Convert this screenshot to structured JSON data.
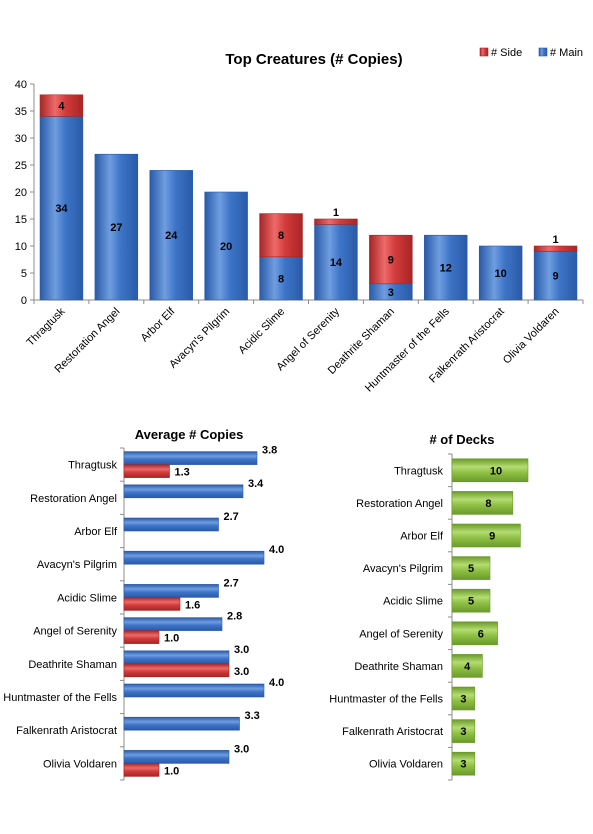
{
  "colors": {
    "main": "#3d74c7",
    "main_light": "#6f9de0",
    "main_dark": "#2a5aa8",
    "side": "#d23b3b",
    "side_light": "#ee6a6a",
    "side_dark": "#a82525",
    "decks": "#8fc044",
    "decks_light": "#b4dc72",
    "decks_dark": "#6a9a2a",
    "axis": "#8c8c8c"
  },
  "chart_data": [
    {
      "type": "bar",
      "stacked": true,
      "title": "Top Creatures (# Copies)",
      "categories": [
        "Thragtusk",
        "Restoration Angel",
        "Arbor Elf",
        "Avacyn's Pilgrim",
        "Acidic Slime",
        "Angel of Serenity",
        "Deathrite Shaman",
        "Huntmaster of the Fells",
        "Falkenrath Aristocrat",
        "Olivia Voldaren"
      ],
      "series": [
        {
          "name": "# Main",
          "values": [
            34,
            27,
            24,
            20,
            8,
            14,
            3,
            12,
            10,
            9
          ]
        },
        {
          "name": "# Side",
          "values": [
            4,
            0,
            0,
            0,
            8,
            1,
            9,
            0,
            0,
            1
          ]
        }
      ],
      "ylim": [
        0,
        40
      ],
      "yticks": [
        0,
        5,
        10,
        15,
        20,
        25,
        30,
        35,
        40
      ],
      "grid": false,
      "legend": "top-right",
      "legend_order": [
        "# Side",
        "# Main"
      ]
    },
    {
      "type": "bar",
      "orientation": "horizontal",
      "title": "Average # Copies",
      "categories": [
        "Thragtusk",
        "Restoration Angel",
        "Arbor Elf",
        "Avacyn's Pilgrim",
        "Acidic Slime",
        "Angel of Serenity",
        "Deathrite Shaman",
        "Huntmaster of the Fells",
        "Falkenrath Aristocrat",
        "Olivia Voldaren"
      ],
      "series": [
        {
          "values": [
            3.8,
            3.4,
            2.7,
            4.0,
            2.7,
            2.8,
            3.0,
            4.0,
            3.3,
            3.0
          ],
          "labels": [
            "3.8",
            "3.4",
            "2.7",
            "4.0",
            "2.7",
            "2.8",
            "3.0",
            "4.0",
            "3.3",
            "3.0"
          ]
        },
        {
          "values": [
            1.3,
            null,
            null,
            null,
            1.6,
            1.0,
            3.0,
            null,
            null,
            1.0
          ],
          "labels": [
            "1.3",
            "",
            "",
            "",
            "1.6",
            "1.0",
            "3.0",
            "",
            "",
            "1.0"
          ]
        }
      ],
      "xlim": [
        0,
        4.0
      ],
      "grid": false
    },
    {
      "type": "bar",
      "orientation": "horizontal",
      "title": "# of Decks",
      "categories": [
        "Thragtusk",
        "Restoration Angel",
        "Arbor Elf",
        "Avacyn's Pilgrim",
        "Acidic Slime",
        "Angel of Serenity",
        "Deathrite Shaman",
        "Huntmaster of the Fells",
        "Falkenrath Aristocrat",
        "Olivia Voldaren"
      ],
      "values": [
        10,
        8,
        9,
        5,
        5,
        6,
        4,
        3,
        3,
        3
      ],
      "xlim": [
        0,
        10
      ],
      "grid": false
    }
  ]
}
